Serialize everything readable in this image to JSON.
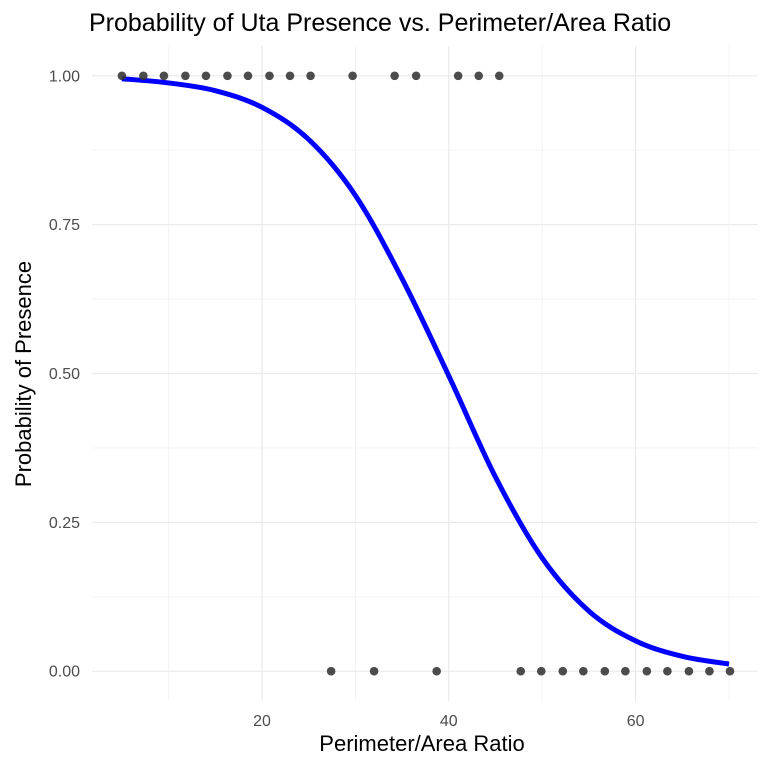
{
  "chart_data": {
    "type": "scatter",
    "title": "Probability of Uta Presence vs. Perimeter/Area Ratio",
    "xlabel": "Perimeter/Area Ratio",
    "ylabel": "Probability of Presence",
    "xlim": [
      1.8,
      73.1
    ],
    "ylim": [
      -0.05,
      1.05
    ],
    "x_ticks": [
      20,
      40,
      60
    ],
    "x_tick_labels": [
      "20",
      "40",
      "60"
    ],
    "x_minor_ticks": [
      10,
      30,
      50,
      70
    ],
    "y_ticks": [
      0.0,
      0.25,
      0.5,
      0.75,
      1.0
    ],
    "y_tick_labels": [
      "0.00",
      "0.25",
      "0.50",
      "0.75",
      "1.00"
    ],
    "y_minor_ticks": [
      0.125,
      0.375,
      0.625,
      0.875
    ],
    "grid": true,
    "series": [
      {
        "type": "scatter",
        "color": "#333333",
        "points": [
          {
            "x": 5.0,
            "y": 1
          },
          {
            "x": 7.3,
            "y": 1
          },
          {
            "x": 9.5,
            "y": 1
          },
          {
            "x": 11.8,
            "y": 1
          },
          {
            "x": 14.0,
            "y": 1
          },
          {
            "x": 16.3,
            "y": 1
          },
          {
            "x": 18.5,
            "y": 1
          },
          {
            "x": 20.8,
            "y": 1
          },
          {
            "x": 23.0,
            "y": 1
          },
          {
            "x": 25.2,
            "y": 1
          },
          {
            "x": 29.7,
            "y": 1
          },
          {
            "x": 34.2,
            "y": 1
          },
          {
            "x": 36.5,
            "y": 1
          },
          {
            "x": 41.0,
            "y": 1
          },
          {
            "x": 43.2,
            "y": 1
          },
          {
            "x": 45.4,
            "y": 1
          },
          {
            "x": 27.4,
            "y": 0
          },
          {
            "x": 32.0,
            "y": 0
          },
          {
            "x": 38.7,
            "y": 0
          },
          {
            "x": 47.7,
            "y": 0
          },
          {
            "x": 49.9,
            "y": 0
          },
          {
            "x": 52.2,
            "y": 0
          },
          {
            "x": 54.4,
            "y": 0
          },
          {
            "x": 56.7,
            "y": 0
          },
          {
            "x": 58.9,
            "y": 0
          },
          {
            "x": 61.2,
            "y": 0
          },
          {
            "x": 63.4,
            "y": 0
          },
          {
            "x": 65.7,
            "y": 0
          },
          {
            "x": 67.9,
            "y": 0
          },
          {
            "x": 70.1,
            "y": 0
          }
        ]
      },
      {
        "type": "line",
        "color": "#0000ff",
        "x": [
          5,
          10,
          15,
          20,
          25,
          30,
          35,
          40,
          45,
          50,
          55,
          60,
          65,
          70
        ],
        "y": [
          0.995,
          0.988,
          0.975,
          0.947,
          0.893,
          0.799,
          0.659,
          0.496,
          0.326,
          0.19,
          0.101,
          0.051,
          0.025,
          0.012
        ]
      }
    ]
  }
}
